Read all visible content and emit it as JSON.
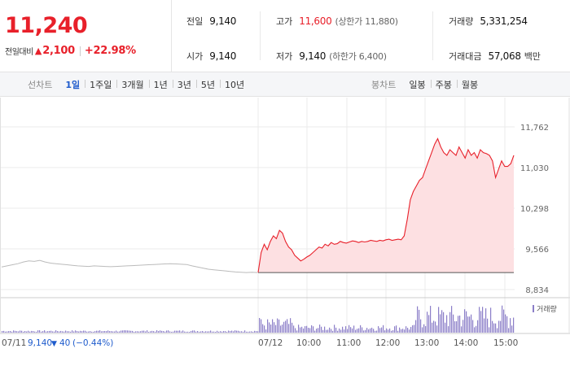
{
  "quote": {
    "price": "11,240",
    "change_label": "전일대비",
    "change_arrow": "▲",
    "change_value": "2,100",
    "change_pct": "+22.98%",
    "up_color": "#e8202a"
  },
  "stats": {
    "prev_close": {
      "label": "전일",
      "value": "9,140"
    },
    "open": {
      "label": "시가",
      "value": "9,140"
    },
    "high": {
      "label": "고가",
      "value": "11,600",
      "note": "(상한가 11,880)"
    },
    "low": {
      "label": "저가",
      "value": "9,140",
      "note": "(하한가 6,400)"
    },
    "volume": {
      "label": "거래량",
      "value": "5,331,254"
    },
    "turnover": {
      "label": "거래대금",
      "value": "57,068",
      "unit": "백만"
    }
  },
  "tabs": {
    "line_label": "선차트",
    "line": [
      "1일",
      "1주일",
      "3개월",
      "1년",
      "3년",
      "5년",
      "10년"
    ],
    "active": "1일",
    "candle_label": "봉차트",
    "candle": [
      "일봉",
      "주봉",
      "월봉"
    ]
  },
  "chart_data": {
    "type": "line",
    "price_axis_ticks": [
      "11,762",
      "11,030",
      "10,298",
      "9,566",
      "8,834"
    ],
    "ylim": [
      8834,
      11762
    ],
    "baseline": 9140,
    "x_ticks": [
      "07/11",
      "07/12",
      "10:00",
      "11:00",
      "12:00",
      "13:00",
      "14:00",
      "15:00"
    ],
    "prev_day": {
      "label": "07/11",
      "close_text": "9,140",
      "change_arrow": "▼",
      "change_text": "40",
      "pct_text": "(−0.44%)",
      "values": [
        9240,
        9260,
        9280,
        9300,
        9330,
        9350,
        9340,
        9360,
        9330,
        9310,
        9300,
        9290,
        9280,
        9270,
        9260,
        9255,
        9250,
        9260,
        9255,
        9250,
        9245,
        9250,
        9255,
        9260,
        9265,
        9270,
        9275,
        9280,
        9285,
        9290,
        9295,
        9300,
        9295,
        9290,
        9285,
        9260,
        9240,
        9220,
        9200,
        9190,
        9180,
        9170,
        9160,
        9150,
        9145,
        9140,
        9145,
        9140
      ]
    },
    "today": {
      "label": "07/12",
      "values": [
        9140,
        9500,
        9650,
        9550,
        9700,
        9800,
        9750,
        9900,
        9850,
        9700,
        9600,
        9550,
        9450,
        9400,
        9350,
        9380,
        9420,
        9450,
        9500,
        9550,
        9600,
        9580,
        9650,
        9620,
        9680,
        9650,
        9660,
        9700,
        9680,
        9670,
        9690,
        9710,
        9700,
        9680,
        9700,
        9690,
        9700,
        9720,
        9710,
        9700,
        9720,
        9710,
        9730,
        9740,
        9720,
        9730,
        9740,
        9730,
        9800,
        10100,
        10450,
        10600,
        10700,
        10800,
        10850,
        11000,
        11150,
        11300,
        11450,
        11550,
        11400,
        11300,
        11250,
        11350,
        11300,
        11250,
        11400,
        11300,
        11200,
        11350,
        11250,
        11300,
        11200,
        11350,
        11300,
        11280,
        11250,
        11150,
        10850,
        11000,
        11150,
        11050,
        11050,
        11100,
        11250
      ]
    },
    "volume_label": "거래량",
    "volume_color": "#8b7ec8",
    "line_color": "#e8202a",
    "fill_color": "#fde0e2",
    "prev_line_color": "#bbbbbb",
    "grid": true
  }
}
